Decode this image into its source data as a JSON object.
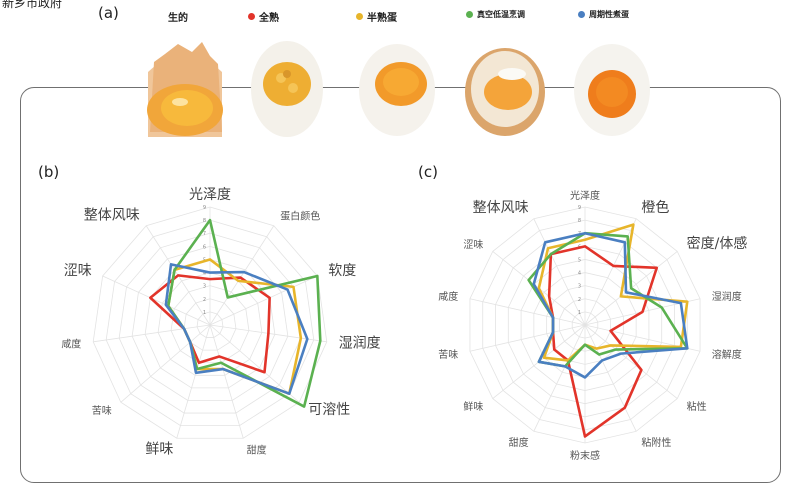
{
  "source_watermark": "新乡市政府",
  "panel_a": {
    "label": "(a)",
    "legend": [
      {
        "label": "生的",
        "color": "#333333"
      },
      {
        "label": "全熟",
        "color": "#e2342a"
      },
      {
        "label": "半熟蛋",
        "color": "#e7b52b"
      },
      {
        "label": "真空低温烹调",
        "color": "#5bb150"
      },
      {
        "label": "周期性煮蛋",
        "color": "#4a7fc1"
      }
    ]
  },
  "chart_data": [
    {
      "type": "radar",
      "panel": "(b)",
      "axes": [
        "光泽度",
        "蛋白颜色",
        "软度",
        "湿润度",
        "可溶性",
        "甜度",
        "鲜味",
        "苦味",
        "咸度",
        "涩味",
        "整体风味"
      ],
      "scale": {
        "min": 0,
        "max": 9,
        "ticks": [
          "1",
          "2",
          "3",
          "4",
          "5",
          "6",
          "7",
          "8",
          "9"
        ]
      },
      "series": [
        {
          "color": "#e2342a",
          "values": [
            3.5,
            4.3,
            5.0,
            4.5,
            5.5,
            2.5,
            3.0,
            2.0,
            2.0,
            5.0,
            4.5
          ]
        },
        {
          "color": "#e7b52b",
          "values": [
            5.0,
            4.0,
            7.0,
            7.0,
            8.0,
            3.5,
            3.5,
            2.0,
            2.0,
            3.5,
            5.0
          ]
        },
        {
          "color": "#5bb150",
          "values": [
            8.0,
            2.5,
            9.0,
            8.5,
            9.5,
            3.0,
            3.5,
            2.0,
            2.0,
            3.5,
            5.0
          ]
        },
        {
          "color": "#4a7fc1",
          "values": [
            4.0,
            4.8,
            6.5,
            7.5,
            8.0,
            3.5,
            3.8,
            2.0,
            2.0,
            3.7,
            5.5
          ]
        }
      ]
    },
    {
      "type": "radar",
      "panel": "(c)",
      "axes": [
        "光泽度",
        "橙色",
        "密度/体感",
        "湿润度",
        "溶解度",
        "粘性",
        "粘附性",
        "粉末感",
        "甜度",
        "鲜味",
        "苦味",
        "咸度",
        "涩味",
        "整体风味"
      ],
      "scale": {
        "min": 0,
        "max": 9,
        "ticks": [
          "1",
          "2",
          "3",
          "4",
          "5",
          "6",
          "7",
          "8",
          "9"
        ]
      },
      "series": [
        {
          "color": "#e2342a",
          "values": [
            6.0,
            5.0,
            7.0,
            4.5,
            2.0,
            5.5,
            7.0,
            8.5,
            3.0,
            3.0,
            2.5,
            2.5,
            3.5,
            6.0
          ]
        },
        {
          "color": "#e7b52b",
          "values": [
            6.5,
            8.5,
            3.5,
            8.0,
            7.5,
            2.5,
            2.0,
            1.5,
            3.0,
            4.0,
            2.5,
            2.5,
            4.5,
            6.5
          ]
        },
        {
          "color": "#5bb150",
          "values": [
            7.0,
            7.5,
            4.5,
            6.0,
            8.0,
            3.0,
            2.5,
            1.5,
            3.5,
            4.5,
            2.5,
            2.5,
            5.5,
            6.0
          ]
        },
        {
          "color": "#4a7fc1",
          "values": [
            7.0,
            7.0,
            4.0,
            7.5,
            8.0,
            3.5,
            3.0,
            4.0,
            3.5,
            4.5,
            2.5,
            2.5,
            5.0,
            7.0
          ]
        }
      ]
    }
  ]
}
